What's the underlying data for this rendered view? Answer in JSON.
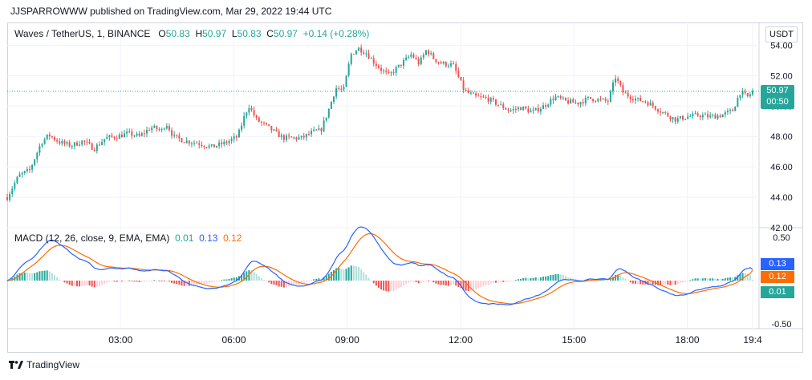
{
  "header": {
    "published_line": "JJSPARROWWW published on TradingView.com, Mar 29, 2022 19:44 UTC"
  },
  "legend": {
    "symbol": "Waves / TetherUS, 1, BINANCE",
    "o_label": "O",
    "o_value": "50.83",
    "h_label": "H",
    "h_value": "50.97",
    "l_label": "L",
    "l_value": "50.83",
    "c_label": "C",
    "c_value": "50.97",
    "change": "+0.14 (+0.28%)"
  },
  "macd_legend": {
    "label": "MACD (12, 26, close, 9, EMA, EMA)",
    "hist_value": "0.01",
    "macd_value": "0.13",
    "signal_value": "0.12"
  },
  "currency_button": "USDT",
  "price_tag": {
    "price": "50.97",
    "countdown": "00:50"
  },
  "macd_tags": {
    "macd": "0.13",
    "signal": "0.12",
    "hist": "0.01"
  },
  "footer": {
    "brand": "TradingView"
  },
  "colors": {
    "up": "#26a69a",
    "down": "#ef5350",
    "macd": "#2962ff",
    "signal": "#ff6d00",
    "hist_up_strong": "#26a69a",
    "hist_up_weak": "#b2dfdb",
    "hist_down_strong": "#ef5350",
    "hist_down_weak": "#ffcdd2",
    "price_line": "#26a69a"
  },
  "chart_data": [
    {
      "type": "candlestick",
      "title": "Waves / TetherUS, 1, BINANCE",
      "ylim": [
        42,
        55.5
      ],
      "y_ticks": [
        "54.00",
        "52.00",
        "50.00",
        "48.00",
        "46.00",
        "44.00",
        "42.00"
      ],
      "y_tick_values": [
        54,
        52,
        50,
        48,
        46,
        44,
        42
      ],
      "x_ticks": [
        "03:00",
        "06:00",
        "09:00",
        "12:00",
        "15:00",
        "18:00",
        "19:4"
      ],
      "x_tick_hours": [
        3,
        6,
        9,
        12,
        15,
        18,
        19.73
      ],
      "x_range_hours": [
        0.0,
        19.9
      ],
      "last_price": 50.97,
      "series": [
        {
          "name": "price",
          "points": [
            [
              0.0,
              44.0
            ],
            [
              0.3,
              45.4
            ],
            [
              0.6,
              45.8
            ],
            [
              0.9,
              47.6
            ],
            [
              1.1,
              48.1
            ],
            [
              1.4,
              47.6
            ],
            [
              1.7,
              47.4
            ],
            [
              2.0,
              47.7
            ],
            [
              2.3,
              47.2
            ],
            [
              2.6,
              47.9
            ],
            [
              2.9,
              48.0
            ],
            [
              3.2,
              48.2
            ],
            [
              3.5,
              48.0
            ],
            [
              3.8,
              48.6
            ],
            [
              4.1,
              48.4
            ],
            [
              4.2,
              48.9
            ],
            [
              4.4,
              48.0
            ],
            [
              4.7,
              47.7
            ],
            [
              5.0,
              47.6
            ],
            [
              5.4,
              47.3
            ],
            [
              5.8,
              47.6
            ],
            [
              6.1,
              48.0
            ],
            [
              6.3,
              49.5
            ],
            [
              6.4,
              50.0
            ],
            [
              6.6,
              49.1
            ],
            [
              6.9,
              48.6
            ],
            [
              7.3,
              47.9
            ],
            [
              7.8,
              47.9
            ],
            [
              8.1,
              48.3
            ],
            [
              8.3,
              48.4
            ],
            [
              8.5,
              49.7
            ],
            [
              8.7,
              51.2
            ],
            [
              8.9,
              51.0
            ],
            [
              9.1,
              53.4
            ],
            [
              9.3,
              53.8
            ],
            [
              9.5,
              53.5
            ],
            [
              9.7,
              52.9
            ],
            [
              9.9,
              52.4
            ],
            [
              10.1,
              52.0
            ],
            [
              10.4,
              52.7
            ],
            [
              10.7,
              53.4
            ],
            [
              10.9,
              52.8
            ],
            [
              11.1,
              53.7
            ],
            [
              11.3,
              53.1
            ],
            [
              11.5,
              52.8
            ],
            [
              11.8,
              52.7
            ],
            [
              12.1,
              51.0
            ],
            [
              12.4,
              50.6
            ],
            [
              12.7,
              50.5
            ],
            [
              13.0,
              50.1
            ],
            [
              13.3,
              49.7
            ],
            [
              13.6,
              49.9
            ],
            [
              13.9,
              49.6
            ],
            [
              14.2,
              50.0
            ],
            [
              14.5,
              50.6
            ],
            [
              14.8,
              50.3
            ],
            [
              15.1,
              50.2
            ],
            [
              15.4,
              50.5
            ],
            [
              15.7,
              50.4
            ],
            [
              15.9,
              50.3
            ],
            [
              16.1,
              51.9
            ],
            [
              16.3,
              50.9
            ],
            [
              16.5,
              50.6
            ],
            [
              16.7,
              50.4
            ],
            [
              16.9,
              50.3
            ],
            [
              17.1,
              50.0
            ],
            [
              17.4,
              49.5
            ],
            [
              17.7,
              49.1
            ],
            [
              18.0,
              49.3
            ],
            [
              18.3,
              49.4
            ],
            [
              18.6,
              49.3
            ],
            [
              18.9,
              49.4
            ],
            [
              19.2,
              49.7
            ],
            [
              19.4,
              50.9
            ],
            [
              19.6,
              50.6
            ],
            [
              19.73,
              50.97
            ]
          ]
        }
      ]
    },
    {
      "type": "line",
      "title": "MACD (12, 26, close, 9, EMA, EMA)",
      "ylim": [
        -0.5,
        0.5
      ],
      "y_ticks": [
        "0.50",
        "-0.50"
      ],
      "y_tick_values": [
        0.5,
        -0.5
      ],
      "series": [
        {
          "name": "MACD",
          "last": 0.13
        },
        {
          "name": "Signal",
          "last": 0.12
        },
        {
          "name": "Histogram",
          "last": 0.01
        }
      ]
    }
  ]
}
